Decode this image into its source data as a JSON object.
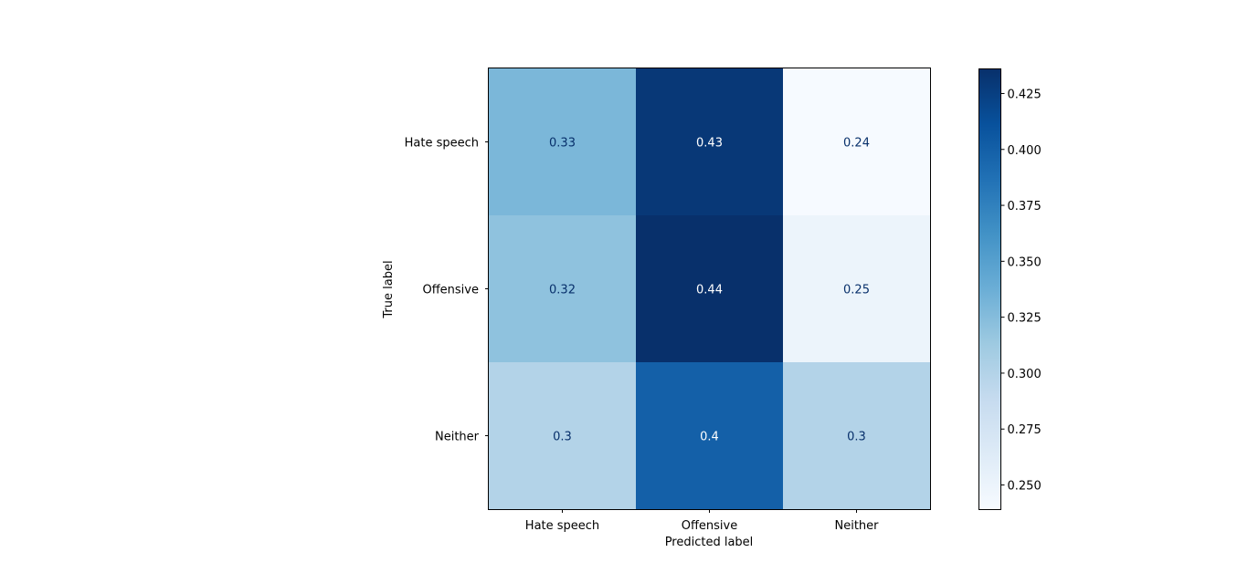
{
  "chart_data": {
    "type": "heatmap",
    "x_categories": [
      "Hate speech",
      "Offensive",
      "Neither"
    ],
    "y_categories": [
      "Hate speech",
      "Offensive",
      "Neither"
    ],
    "matrix": [
      [
        0.33,
        0.43,
        0.24
      ],
      [
        0.32,
        0.44,
        0.25
      ],
      [
        0.3,
        0.4,
        0.3
      ]
    ],
    "cell_labels": [
      [
        "0.33",
        "0.43",
        "0.24"
      ],
      [
        "0.32",
        "0.44",
        "0.25"
      ],
      [
        "0.3",
        "0.4",
        "0.3"
      ]
    ],
    "xlabel": "Predicted label",
    "ylabel": "True label",
    "colormap": "Blues",
    "colorbar": {
      "range": [
        0.239,
        0.436
      ],
      "ticks": [
        0.25,
        0.275,
        0.3,
        0.325,
        0.35,
        0.375,
        0.4,
        0.425
      ],
      "tick_labels": [
        "0.250",
        "0.275",
        "0.300",
        "0.325",
        "0.350",
        "0.375",
        "0.400",
        "0.425"
      ]
    },
    "colors": {
      "dark_text": "#08306b",
      "light_text": "#ffffff"
    }
  }
}
